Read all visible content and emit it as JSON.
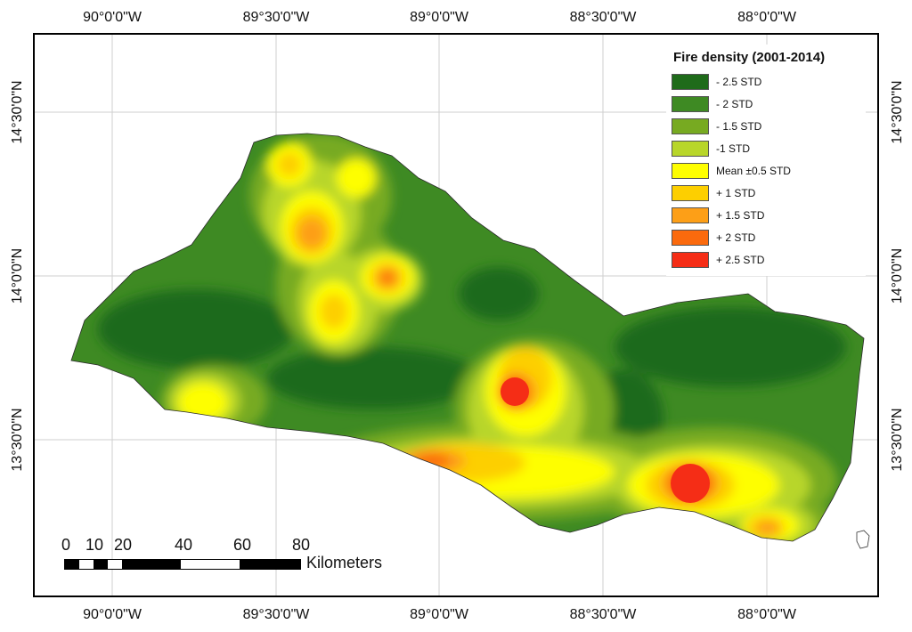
{
  "map": {
    "legend": {
      "title": "Fire density (2001-2014)",
      "items": [
        {
          "label": "- 2.5 STD",
          "color": "#1f6b1a"
        },
        {
          "label": "- 2 STD",
          "color": "#3e8a23"
        },
        {
          "label": "- 1.5 STD",
          "color": "#77aa21"
        },
        {
          "label": "-1 STD",
          "color": "#b8d62a"
        },
        {
          "label": "Mean ±0.5 STD",
          "color": "#fefe00"
        },
        {
          "label": "+ 1 STD",
          "color": "#fdcf00"
        },
        {
          "label": "+ 1.5 STD",
          "color": "#fd9f17"
        },
        {
          "label": "+ 2 STD",
          "color": "#fb6a0d"
        },
        {
          "label": "+ 2.5 STD",
          "color": "#f52d16"
        }
      ]
    },
    "longitudes": [
      "90°0'0\"W",
      "89°30'0\"W",
      "89°0'0\"W",
      "88°30'0\"W",
      "88°0'0\"W"
    ],
    "latitudes": [
      "14°30'0\"N",
      "14°0'0\"N",
      "13°30'0\"N"
    ],
    "scale": {
      "numbers": [
        "0",
        "10",
        "20",
        "40",
        "60",
        "80"
      ],
      "unit": "Kilometers"
    }
  }
}
